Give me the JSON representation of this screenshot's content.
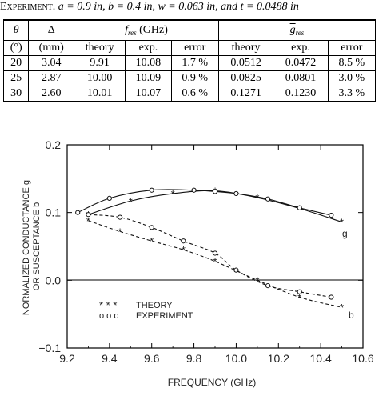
{
  "caption": {
    "lead": "Experiment.",
    "text": " a = 0.9 in, b = 0.4 in, w = 0.063 in, and t = 0.0488 in"
  },
  "table": {
    "h_theta": "θ",
    "h_theta_unit": "(°)",
    "h_delta": "Δ",
    "h_delta_unit": "(mm)",
    "h_fres": "f",
    "h_fres_sub": "res",
    "h_fres_unit": " (GHz)",
    "h_gres": "g",
    "h_gres_sub": "res",
    "sub_theory": "theory",
    "sub_exp": "exp.",
    "sub_error": "error",
    "rows": [
      {
        "theta": "20",
        "delta": "3.04",
        "f_theory": "9.91",
        "f_exp": "10.08",
        "f_err": "1.7 %",
        "g_theory": "0.0512",
        "g_exp": "0.0472",
        "g_err": "8.5 %"
      },
      {
        "theta": "25",
        "delta": "2.87",
        "f_theory": "10.00",
        "f_exp": "10.09",
        "f_err": "0.9 %",
        "g_theory": "0.0825",
        "g_exp": "0.0801",
        "g_err": "3.0 %"
      },
      {
        "theta": "30",
        "delta": "2.60",
        "f_theory": "10.01",
        "f_exp": "10.07",
        "f_err": "0.6 %",
        "g_theory": "0.1271",
        "g_exp": "0.1230",
        "g_err": "3.3 %"
      }
    ]
  },
  "chart_data": {
    "type": "line",
    "xlabel": "FREQUENCY (GHz)",
    "ylabel_line1": "NORMALIZED CONDUCTANCE g",
    "ylabel_line2": "OR SUSCEPTANCE b",
    "xlim": [
      9.2,
      10.6
    ],
    "ylim": [
      -0.1,
      0.2
    ],
    "xticks": [
      "9.2",
      "9.4",
      "9.6",
      "9.8",
      "10.0",
      "10.2",
      "10.4",
      "10.6"
    ],
    "yticks": [
      "0.2",
      "0.1",
      "0.0",
      "-0.1"
    ],
    "curve_labels": {
      "g": "g",
      "b": "b"
    },
    "legend": [
      {
        "symbol": "* * *",
        "label": "THEORY"
      },
      {
        "symbol": "o o o",
        "label": "EXPERIMENT"
      }
    ],
    "series": [
      {
        "name": "THEORY",
        "quantity": "g",
        "marker": "star",
        "x": [
          9.3,
          9.5,
          9.7,
          9.9,
          10.1,
          10.3,
          10.5
        ],
        "y": [
          0.097,
          0.117,
          0.128,
          0.132,
          0.122,
          0.106,
          0.086
        ]
      },
      {
        "name": "EXPERIMENT",
        "quantity": "g",
        "marker": "circle",
        "x": [
          9.25,
          9.4,
          9.6,
          9.8,
          9.9,
          10.0,
          10.15,
          10.3,
          10.45
        ],
        "y": [
          0.1,
          0.121,
          0.133,
          0.133,
          0.131,
          0.128,
          0.12,
          0.107,
          0.096
        ]
      },
      {
        "name": "THEORY",
        "quantity": "b",
        "marker": "star",
        "x": [
          9.3,
          9.45,
          9.6,
          9.75,
          9.9,
          10.1,
          10.3,
          10.5
        ],
        "y": [
          0.088,
          0.072,
          0.058,
          0.045,
          0.028,
          0.0,
          -0.025,
          -0.04
        ]
      },
      {
        "name": "EXPERIMENT",
        "quantity": "b",
        "marker": "circle",
        "x": [
          9.3,
          9.45,
          9.6,
          9.75,
          9.9,
          10.0,
          10.15,
          10.3,
          10.45
        ],
        "y": [
          0.097,
          0.093,
          0.078,
          0.058,
          0.04,
          0.015,
          -0.008,
          -0.017,
          -0.025
        ]
      }
    ]
  }
}
